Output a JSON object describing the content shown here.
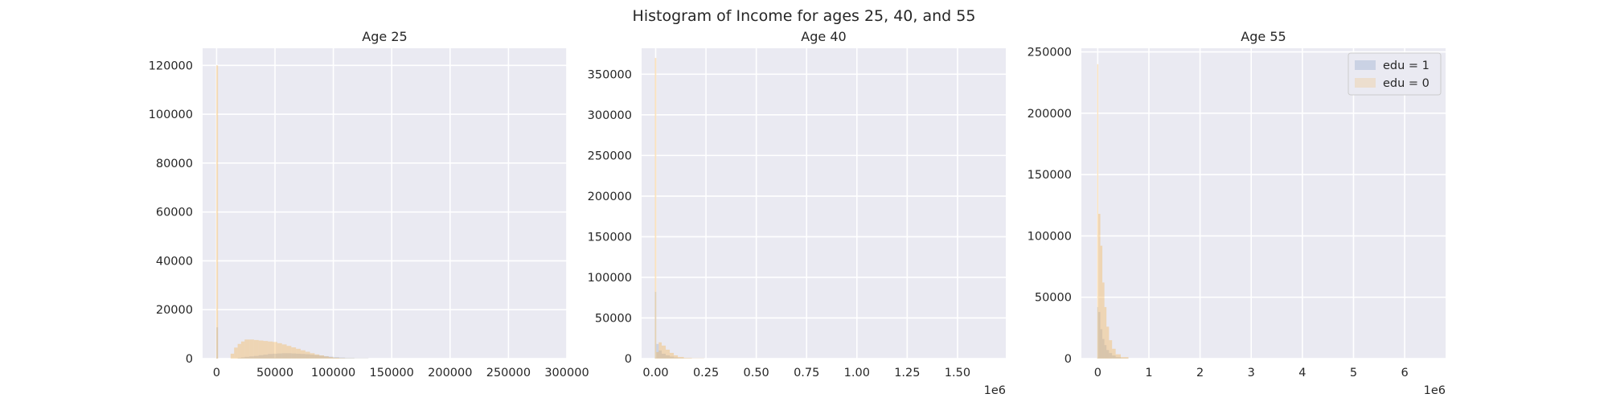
{
  "figure": {
    "title": "Histogram of Income for ages 25, 40, and 55"
  },
  "chart_data": [
    {
      "type": "bar",
      "title": "Age 25",
      "xlabel": "",
      "ylabel": "",
      "xlim": [
        -12000,
        300000
      ],
      "ylim": [
        0,
        127000
      ],
      "xticks": [
        0,
        50000,
        100000,
        150000,
        200000,
        250000,
        300000
      ],
      "xtick_labels": [
        "0",
        "50000",
        "100000",
        "150000",
        "200000",
        "250000",
        "300000"
      ],
      "yticks": [
        0,
        20000,
        40000,
        60000,
        80000,
        100000,
        120000
      ],
      "ytick_labels": [
        "0",
        "20000",
        "40000",
        "60000",
        "80000",
        "100000",
        "120000"
      ],
      "x_offset_label": "",
      "grid": true,
      "bins": [
        {
          "x0": -300,
          "x1": 1200,
          "edu1": 12800,
          "edu0": 120000
        },
        {
          "x0": 12000,
          "x1": 15000,
          "edu1": 0,
          "edu0": 2000
        },
        {
          "x0": 15000,
          "x1": 18000,
          "edu1": 0,
          "edu0": 4500
        },
        {
          "x0": 18000,
          "x1": 21000,
          "edu1": 300,
          "edu0": 6000
        },
        {
          "x0": 21000,
          "x1": 24000,
          "edu1": 500,
          "edu0": 7000
        },
        {
          "x0": 24000,
          "x1": 28000,
          "edu1": 700,
          "edu0": 7800
        },
        {
          "x0": 28000,
          "x1": 32000,
          "edu1": 900,
          "edu0": 7800
        },
        {
          "x0": 32000,
          "x1": 36000,
          "edu1": 1100,
          "edu0": 7600
        },
        {
          "x0": 36000,
          "x1": 40000,
          "edu1": 1400,
          "edu0": 7400
        },
        {
          "x0": 40000,
          "x1": 44000,
          "edu1": 1600,
          "edu0": 7200
        },
        {
          "x0": 44000,
          "x1": 48000,
          "edu1": 1900,
          "edu0": 7000
        },
        {
          "x0": 48000,
          "x1": 52000,
          "edu1": 2000,
          "edu0": 6800
        },
        {
          "x0": 52000,
          "x1": 56000,
          "edu1": 2100,
          "edu0": 6300
        },
        {
          "x0": 56000,
          "x1": 60000,
          "edu1": 2200,
          "edu0": 5800
        },
        {
          "x0": 60000,
          "x1": 64000,
          "edu1": 2200,
          "edu0": 5200
        },
        {
          "x0": 64000,
          "x1": 68000,
          "edu1": 2100,
          "edu0": 4600
        },
        {
          "x0": 68000,
          "x1": 72000,
          "edu1": 2000,
          "edu0": 4000
        },
        {
          "x0": 72000,
          "x1": 76000,
          "edu1": 1900,
          "edu0": 3400
        },
        {
          "x0": 76000,
          "x1": 80000,
          "edu1": 1800,
          "edu0": 2800
        },
        {
          "x0": 80000,
          "x1": 84000,
          "edu1": 1600,
          "edu0": 2200
        },
        {
          "x0": 84000,
          "x1": 88000,
          "edu1": 1400,
          "edu0": 1700
        },
        {
          "x0": 88000,
          "x1": 92000,
          "edu1": 1200,
          "edu0": 1300
        },
        {
          "x0": 92000,
          "x1": 96000,
          "edu1": 1000,
          "edu0": 900
        },
        {
          "x0": 96000,
          "x1": 100000,
          "edu1": 800,
          "edu0": 600
        },
        {
          "x0": 100000,
          "x1": 105000,
          "edu1": 600,
          "edu0": 350
        },
        {
          "x0": 105000,
          "x1": 110000,
          "edu1": 450,
          "edu0": 200
        },
        {
          "x0": 110000,
          "x1": 118000,
          "edu1": 300,
          "edu0": 100
        },
        {
          "x0": 118000,
          "x1": 130000,
          "edu1": 150,
          "edu0": 40
        }
      ]
    },
    {
      "type": "bar",
      "title": "Age 40",
      "xlabel": "",
      "ylabel": "",
      "xlim": [
        -0.07,
        1.74
      ],
      "ylim": [
        0,
        382000
      ],
      "xticks": [
        0,
        0.25,
        0.5,
        0.75,
        1.0,
        1.25,
        1.5
      ],
      "xtick_labels": [
        "0.00",
        "0.25",
        "0.50",
        "0.75",
        "1.00",
        "1.25",
        "1.50"
      ],
      "yticks": [
        0,
        50000,
        100000,
        150000,
        200000,
        250000,
        300000,
        350000
      ],
      "ytick_labels": [
        "0",
        "50000",
        "100000",
        "150000",
        "200000",
        "250000",
        "300000",
        "350000"
      ],
      "x_offset_label": "1e6",
      "grid": true,
      "bins": [
        {
          "x0": -0.004,
          "x1": 0.003,
          "edu1": 82000,
          "edu0": 370000
        },
        {
          "x0": 0.003,
          "x1": 0.015,
          "edu1": 18000,
          "edu0": 8000
        },
        {
          "x0": 0.015,
          "x1": 0.03,
          "edu1": 10000,
          "edu0": 20000
        },
        {
          "x0": 0.03,
          "x1": 0.05,
          "edu1": 6000,
          "edu0": 16000
        },
        {
          "x0": 0.05,
          "x1": 0.07,
          "edu1": 4000,
          "edu0": 11000
        },
        {
          "x0": 0.07,
          "x1": 0.09,
          "edu1": 2500,
          "edu0": 7000
        },
        {
          "x0": 0.09,
          "x1": 0.11,
          "edu1": 1500,
          "edu0": 4000
        },
        {
          "x0": 0.11,
          "x1": 0.14,
          "edu1": 800,
          "edu0": 2000
        },
        {
          "x0": 0.14,
          "x1": 0.18,
          "edu1": 400,
          "edu0": 800
        },
        {
          "x0": 0.18,
          "x1": 0.24,
          "edu1": 200,
          "edu0": 300
        }
      ]
    },
    {
      "type": "bar",
      "title": "Age 55",
      "xlabel": "",
      "ylabel": "",
      "xlim": [
        -0.32,
        6.8
      ],
      "ylim": [
        0,
        253000
      ],
      "xticks": [
        0,
        1,
        2,
        3,
        4,
        5,
        6
      ],
      "xtick_labels": [
        "0",
        "1",
        "2",
        "3",
        "4",
        "5",
        "6"
      ],
      "yticks": [
        0,
        50000,
        100000,
        150000,
        200000,
        250000
      ],
      "ytick_labels": [
        "0",
        "50000",
        "100000",
        "150000",
        "200000",
        "250000"
      ],
      "x_offset_label": "1e6",
      "grid": true,
      "legend": {
        "placement": "top-right",
        "entries": [
          "edu = 1",
          "edu = 0"
        ]
      },
      "bins": [
        {
          "x0": -0.01,
          "x1": 0.01,
          "edu1": 42000,
          "edu0": 240000
        },
        {
          "x0": 0.01,
          "x1": 0.05,
          "edu1": 38000,
          "edu0": 118000
        },
        {
          "x0": 0.05,
          "x1": 0.09,
          "edu1": 24000,
          "edu0": 92000
        },
        {
          "x0": 0.09,
          "x1": 0.13,
          "edu1": 16000,
          "edu0": 62000
        },
        {
          "x0": 0.13,
          "x1": 0.17,
          "edu1": 11000,
          "edu0": 42000
        },
        {
          "x0": 0.17,
          "x1": 0.22,
          "edu1": 7000,
          "edu0": 26000
        },
        {
          "x0": 0.22,
          "x1": 0.28,
          "edu1": 4500,
          "edu0": 15000
        },
        {
          "x0": 0.28,
          "x1": 0.35,
          "edu1": 2500,
          "edu0": 8000
        },
        {
          "x0": 0.35,
          "x1": 0.45,
          "edu1": 1200,
          "edu0": 3500
        },
        {
          "x0": 0.45,
          "x1": 0.6,
          "edu1": 500,
          "edu0": 1200
        }
      ]
    }
  ],
  "colors": {
    "background": "#eaeaf2",
    "grid": "#ffffff",
    "edu1": "#4c72b0",
    "edu0": "#f5b041",
    "text": "#262626"
  }
}
